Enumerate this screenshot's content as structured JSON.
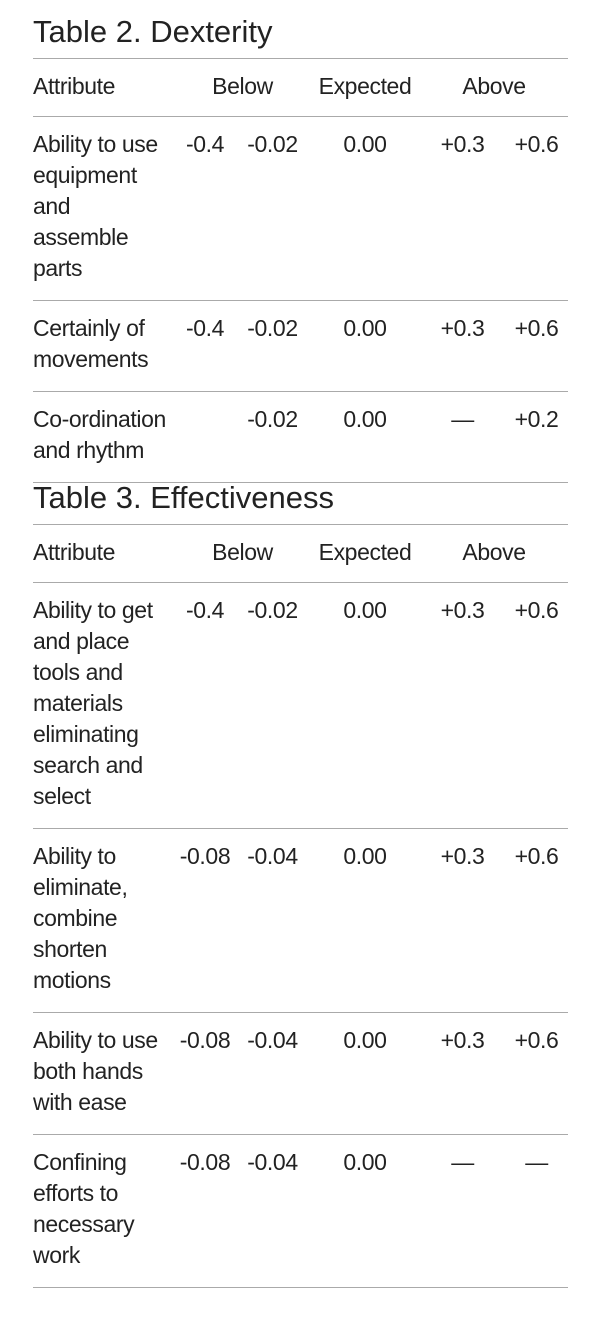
{
  "tables": [
    {
      "title": "Table 2. Dexterity",
      "header": [
        "Attribute",
        "Below",
        "Expected",
        "Above"
      ],
      "rows": [
        [
          "Ability to use equipment and assemble parts",
          "-0.4",
          "-0.02",
          "0.00",
          "+0.3",
          "+0.6"
        ],
        [
          "Certainly of movements",
          "-0.4",
          "-0.02",
          "0.00",
          "+0.3",
          "+0.6"
        ],
        [
          "Co-ordination and rhythm",
          null,
          "-0.02",
          "0.00",
          "—",
          "+0.2"
        ]
      ]
    },
    {
      "title": "Table 3. Effectiveness",
      "header": [
        "Attribute",
        "Below",
        "Expected",
        "Above"
      ],
      "rows": [
        [
          "Ability to get and place tools and materials eliminating search and select",
          "-0.4",
          "-0.02",
          "0.00",
          "+0.3",
          "+0.6"
        ],
        [
          "Ability to eliminate, combine shorten motions",
          "-0.08",
          "-0.04",
          "0.00",
          "+0.3",
          "+0.6"
        ],
        [
          "Ability to use both hands with ease",
          "-0.08",
          "-0.04",
          "0.00",
          "+0.3",
          "+0.6"
        ],
        [
          "Confining efforts to necessary work",
          "-0.08",
          "-0.04",
          "0.00",
          "—",
          "—"
        ]
      ]
    }
  ]
}
